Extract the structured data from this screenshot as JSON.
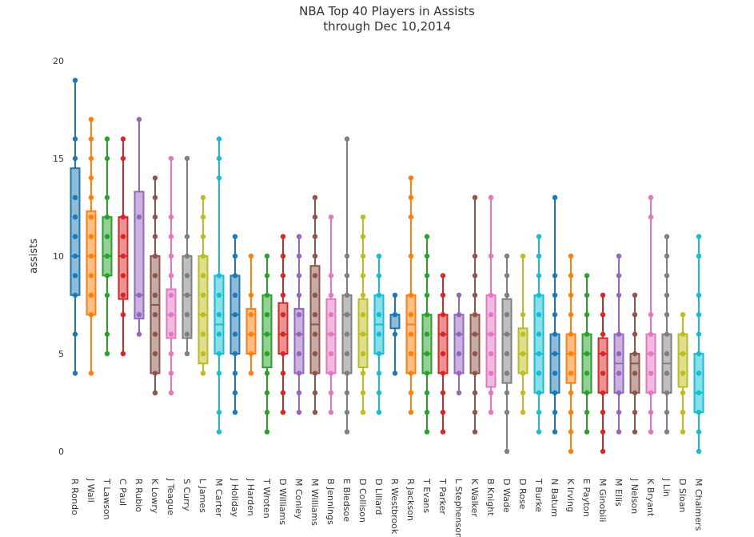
{
  "chart_data": {
    "type": "box",
    "title_line1": "NBA Top 40 Players in Assists",
    "title_line2": "through Dec 10,2014",
    "xlabel": "",
    "ylabel": "assists",
    "ylim": [
      0,
      20
    ],
    "yticks": [
      0,
      5,
      10,
      15,
      20
    ],
    "grid": false,
    "legend": "none",
    "series": [
      {
        "name": "R Rondo",
        "color": "#1f77b4",
        "min": 4,
        "q1": 8,
        "median": 10,
        "q3": 14.5,
        "max": 19,
        "points": [
          4,
          6,
          8,
          9,
          10,
          11,
          12,
          13,
          15,
          16,
          19
        ]
      },
      {
        "name": "J Wall",
        "color": "#ff7f0e",
        "min": 4,
        "q1": 7,
        "median": 10,
        "q3": 12.3,
        "max": 17,
        "points": [
          4,
          7,
          8,
          9,
          10,
          11,
          12,
          13,
          14,
          15,
          16,
          17
        ]
      },
      {
        "name": "T Lawson",
        "color": "#2ca02c",
        "min": 5,
        "q1": 9,
        "median": 10,
        "q3": 12,
        "max": 16,
        "points": [
          5,
          6,
          8,
          9,
          10,
          11,
          12,
          13,
          15,
          16
        ]
      },
      {
        "name": "C Paul",
        "color": "#d62728",
        "min": 5,
        "q1": 7.8,
        "median": 10,
        "q3": 12,
        "max": 16,
        "points": [
          5,
          7,
          8,
          9,
          10,
          11,
          12,
          15,
          16
        ]
      },
      {
        "name": "R Rubio",
        "color": "#9467bd",
        "min": 6,
        "q1": 6.8,
        "median": 8,
        "q3": 13.3,
        "max": 17,
        "points": [
          6,
          7,
          8,
          12,
          17
        ]
      },
      {
        "name": "K Lowry",
        "color": "#8c564b",
        "min": 3,
        "q1": 4,
        "median": 7.5,
        "q3": 10,
        "max": 14,
        "points": [
          3,
          4,
          5,
          6,
          7,
          8,
          9,
          10,
          11,
          12,
          13,
          14
        ]
      },
      {
        "name": "J Teague",
        "color": "#e377c2",
        "min": 3,
        "q1": 5.8,
        "median": 7,
        "q3": 8.3,
        "max": 15,
        "points": [
          3,
          4,
          5,
          6,
          7,
          8,
          9,
          10,
          11,
          12,
          15
        ]
      },
      {
        "name": "S Curry",
        "color": "#7f7f7f",
        "min": 5,
        "q1": 5.8,
        "median": 8,
        "q3": 10,
        "max": 15,
        "points": [
          5,
          6,
          7,
          8,
          9,
          10,
          11,
          15
        ]
      },
      {
        "name": "L James",
        "color": "#bcbd22",
        "min": 4,
        "q1": 4.5,
        "median": 7,
        "q3": 10,
        "max": 13,
        "points": [
          4,
          5,
          6,
          7,
          8,
          9,
          10,
          11,
          12,
          13
        ]
      },
      {
        "name": "M Carter",
        "color": "#17becf",
        "min": 1,
        "q1": 5,
        "median": 6.5,
        "q3": 9,
        "max": 16,
        "points": [
          1,
          2,
          4,
          5,
          6,
          7,
          8,
          9,
          14,
          15,
          16
        ]
      },
      {
        "name": "J Holiday",
        "color": "#1f77b4",
        "min": 2,
        "q1": 5,
        "median": 7,
        "q3": 9,
        "max": 11,
        "points": [
          2,
          3,
          4,
          5,
          6,
          7,
          8,
          9,
          10,
          11
        ]
      },
      {
        "name": "J Harden",
        "color": "#ff7f0e",
        "min": 4,
        "q1": 5,
        "median": 6,
        "q3": 7.3,
        "max": 10,
        "points": [
          4,
          5,
          6,
          7,
          8,
          10
        ]
      },
      {
        "name": "T Wroten",
        "color": "#2ca02c",
        "min": 1,
        "q1": 4.3,
        "median": 6,
        "q3": 8,
        "max": 10,
        "points": [
          1,
          2,
          3,
          4,
          5,
          6,
          7,
          8,
          9,
          10
        ]
      },
      {
        "name": "D Williams",
        "color": "#d62728",
        "min": 2,
        "q1": 5,
        "median": 6,
        "q3": 7.6,
        "max": 11,
        "points": [
          2,
          3,
          4,
          5,
          6,
          7,
          8,
          9,
          10,
          11
        ]
      },
      {
        "name": "M Conley",
        "color": "#9467bd",
        "min": 2,
        "q1": 4,
        "median": 6,
        "q3": 7.3,
        "max": 11,
        "points": [
          2,
          3,
          4,
          5,
          6,
          7,
          8,
          9,
          10,
          11
        ]
      },
      {
        "name": "M Williams",
        "color": "#8c564b",
        "min": 2,
        "q1": 4,
        "median": 6.5,
        "q3": 9.5,
        "max": 13,
        "points": [
          2,
          3,
          4,
          5,
          6,
          7,
          8,
          9,
          10,
          11,
          12,
          13
        ]
      },
      {
        "name": "B Jennings",
        "color": "#e377c2",
        "min": 2,
        "q1": 4,
        "median": 6,
        "q3": 7.8,
        "max": 12,
        "points": [
          2,
          3,
          4,
          5,
          6,
          7,
          8,
          9,
          12
        ]
      },
      {
        "name": "E Bledsoe",
        "color": "#7f7f7f",
        "min": 1,
        "q1": 4,
        "median": 7,
        "q3": 8,
        "max": 16,
        "points": [
          1,
          2,
          3,
          4,
          5,
          6,
          7,
          8,
          9,
          10,
          16
        ]
      },
      {
        "name": "D Collison",
        "color": "#bcbd22",
        "min": 2,
        "q1": 4.3,
        "median": 6,
        "q3": 7.8,
        "max": 12,
        "points": [
          2,
          3,
          4,
          5,
          6,
          7,
          8,
          9,
          10,
          11,
          12
        ]
      },
      {
        "name": "D Lillard",
        "color": "#17becf",
        "min": 2,
        "q1": 5,
        "median": 6.5,
        "q3": 8,
        "max": 10,
        "points": [
          2,
          3,
          4,
          5,
          6,
          7,
          8,
          9,
          10
        ]
      },
      {
        "name": "R Westbrook",
        "color": "#1f77b4",
        "min": 4,
        "q1": 6.3,
        "median": 7,
        "q3": 7,
        "max": 8,
        "points": [
          4,
          6,
          7,
          8
        ]
      },
      {
        "name": "R Jackson",
        "color": "#ff7f0e",
        "min": 2,
        "q1": 4,
        "median": 6.5,
        "q3": 8,
        "max": 14,
        "points": [
          2,
          3,
          4,
          5,
          6,
          7,
          8,
          10,
          12,
          13,
          14
        ]
      },
      {
        "name": "T Evans",
        "color": "#2ca02c",
        "min": 1,
        "q1": 4,
        "median": 5,
        "q3": 7,
        "max": 11,
        "points": [
          1,
          2,
          3,
          4,
          5,
          6,
          7,
          8,
          9,
          10,
          11
        ]
      },
      {
        "name": "T Parker",
        "color": "#d62728",
        "min": 1,
        "q1": 4,
        "median": 6,
        "q3": 7,
        "max": 9,
        "points": [
          1,
          2,
          3,
          4,
          5,
          6,
          7,
          8,
          9
        ]
      },
      {
        "name": "L Stephenson",
        "color": "#9467bd",
        "min": 3,
        "q1": 4,
        "median": 6,
        "q3": 7,
        "max": 8,
        "points": [
          3,
          4,
          5,
          6,
          7,
          8
        ]
      },
      {
        "name": "K Walker",
        "color": "#8c564b",
        "min": 1,
        "q1": 4,
        "median": 6,
        "q3": 7,
        "max": 13,
        "points": [
          1,
          2,
          3,
          4,
          5,
          6,
          7,
          8,
          9,
          10,
          13
        ]
      },
      {
        "name": "B Knight",
        "color": "#e377c2",
        "min": 2,
        "q1": 3.3,
        "median": 6,
        "q3": 8,
        "max": 13,
        "points": [
          2,
          3,
          4,
          5,
          6,
          7,
          8,
          10,
          13
        ]
      },
      {
        "name": "D Wade",
        "color": "#7f7f7f",
        "min": 0,
        "q1": 3.5,
        "median": 6,
        "q3": 7.8,
        "max": 10,
        "points": [
          0,
          2,
          3,
          4,
          5,
          6,
          7,
          8,
          9,
          10
        ]
      },
      {
        "name": "D Rose",
        "color": "#bcbd22",
        "min": 2,
        "q1": 4,
        "median": 5,
        "q3": 6.3,
        "max": 10,
        "points": [
          2,
          3,
          4,
          5,
          6,
          7,
          10
        ]
      },
      {
        "name": "T Burke",
        "color": "#17becf",
        "min": 1,
        "q1": 3,
        "median": 5,
        "q3": 8,
        "max": 11,
        "points": [
          1,
          2,
          3,
          4,
          5,
          6,
          7,
          8,
          9,
          10,
          11
        ]
      },
      {
        "name": "N Batum",
        "color": "#1f77b4",
        "min": 1,
        "q1": 3,
        "median": 5,
        "q3": 6,
        "max": 13,
        "points": [
          1,
          2,
          3,
          4,
          5,
          6,
          7,
          8,
          9,
          13
        ]
      },
      {
        "name": "K Irving",
        "color": "#ff7f0e",
        "min": 0,
        "q1": 3.5,
        "median": 5,
        "q3": 6,
        "max": 10,
        "points": [
          0,
          1,
          2,
          3,
          4,
          5,
          6,
          7,
          8,
          9,
          10
        ]
      },
      {
        "name": "E Payton",
        "color": "#2ca02c",
        "min": 1,
        "q1": 3,
        "median": 5,
        "q3": 6,
        "max": 9,
        "points": [
          1,
          2,
          3,
          4,
          5,
          6,
          7,
          8,
          9
        ]
      },
      {
        "name": "M Ginobili",
        "color": "#d62728",
        "min": 0,
        "q1": 3,
        "median": 5,
        "q3": 5.8,
        "max": 8,
        "points": [
          0,
          1,
          2,
          3,
          4,
          5,
          6,
          7,
          8
        ]
      },
      {
        "name": "M Ellis",
        "color": "#9467bd",
        "min": 1,
        "q1": 3,
        "median": 4.5,
        "q3": 6,
        "max": 10,
        "points": [
          1,
          2,
          3,
          4,
          5,
          6,
          8,
          9,
          10
        ]
      },
      {
        "name": "J Nelson",
        "color": "#8c564b",
        "min": 1,
        "q1": 3,
        "median": 4.5,
        "q3": 5,
        "max": 8,
        "points": [
          1,
          2,
          3,
          4,
          5,
          6,
          7,
          8
        ]
      },
      {
        "name": "K Bryant",
        "color": "#e377c2",
        "min": 1,
        "q1": 3,
        "median": 5,
        "q3": 6,
        "max": 13,
        "points": [
          1,
          2,
          3,
          4,
          5,
          6,
          7,
          12,
          13
        ]
      },
      {
        "name": "J Lin",
        "color": "#7f7f7f",
        "min": 1,
        "q1": 3,
        "median": 4.5,
        "q3": 6,
        "max": 11,
        "points": [
          1,
          2,
          3,
          4,
          5,
          6,
          7,
          8,
          9,
          10,
          11
        ]
      },
      {
        "name": "D Sloan",
        "color": "#bcbd22",
        "min": 1,
        "q1": 3.3,
        "median": 5,
        "q3": 6,
        "max": 7,
        "points": [
          1,
          2,
          3,
          4,
          5,
          6,
          7
        ]
      },
      {
        "name": "M Chalmers",
        "color": "#17becf",
        "min": 0,
        "q1": 2,
        "median": 3,
        "q3": 5,
        "max": 11,
        "points": [
          0,
          1,
          2,
          3,
          4,
          5,
          6,
          7,
          8,
          10,
          11
        ]
      }
    ]
  }
}
